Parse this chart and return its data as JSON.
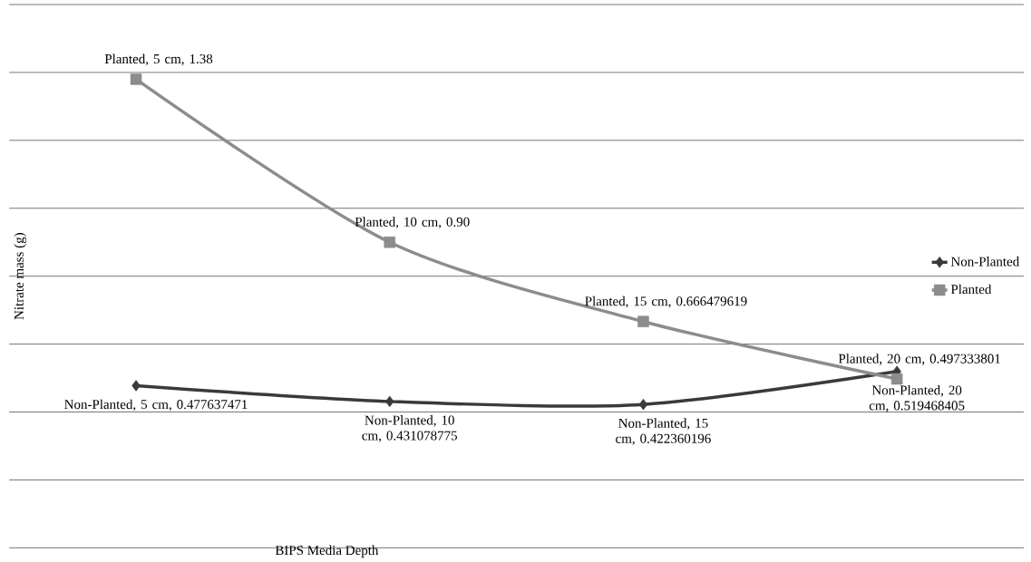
{
  "chart_data": {
    "type": "line",
    "xlabel": "BIPS Media Depth",
    "ylabel": "Nitrate mass (g)",
    "categories": [
      null,
      null,
      null,
      null
    ],
    "series": [
      {
        "name": "Non-Planted",
        "color": "#3a3a3a",
        "marker": "diamond",
        "values": [
          0.477637471,
          0.431078775,
          0.422360196,
          0.519468405
        ],
        "value_labels": [
          "Non-Planted, 5 cm, 0.477637471",
          "Non-Planted, 10 cm, 0.431078775",
          "Non-Planted, 15 cm, 0.422360196",
          "Non-Planted, 20 cm, 0.519468405"
        ]
      },
      {
        "name": "Planted",
        "color": "#8c8c8c",
        "marker": "square",
        "values": [
          1.38,
          0.9,
          0.666479619,
          0.497333801
        ],
        "value_labels": [
          "Planted, 5 cm, 1.38",
          "Planted, 10 cm, 0.90",
          "Planted, 15 cm, 0.666479619",
          "Planted, 20 cm, 0.497333801"
        ]
      }
    ],
    "ylim": [
      0,
      1.6
    ],
    "yticks": [
      0,
      0.2,
      0.4,
      0.6,
      0.8,
      1.0,
      1.2,
      1.4,
      1.6
    ],
    "tick_labels": false,
    "grid": "y",
    "legend": "right",
    "line_style": "solid"
  }
}
